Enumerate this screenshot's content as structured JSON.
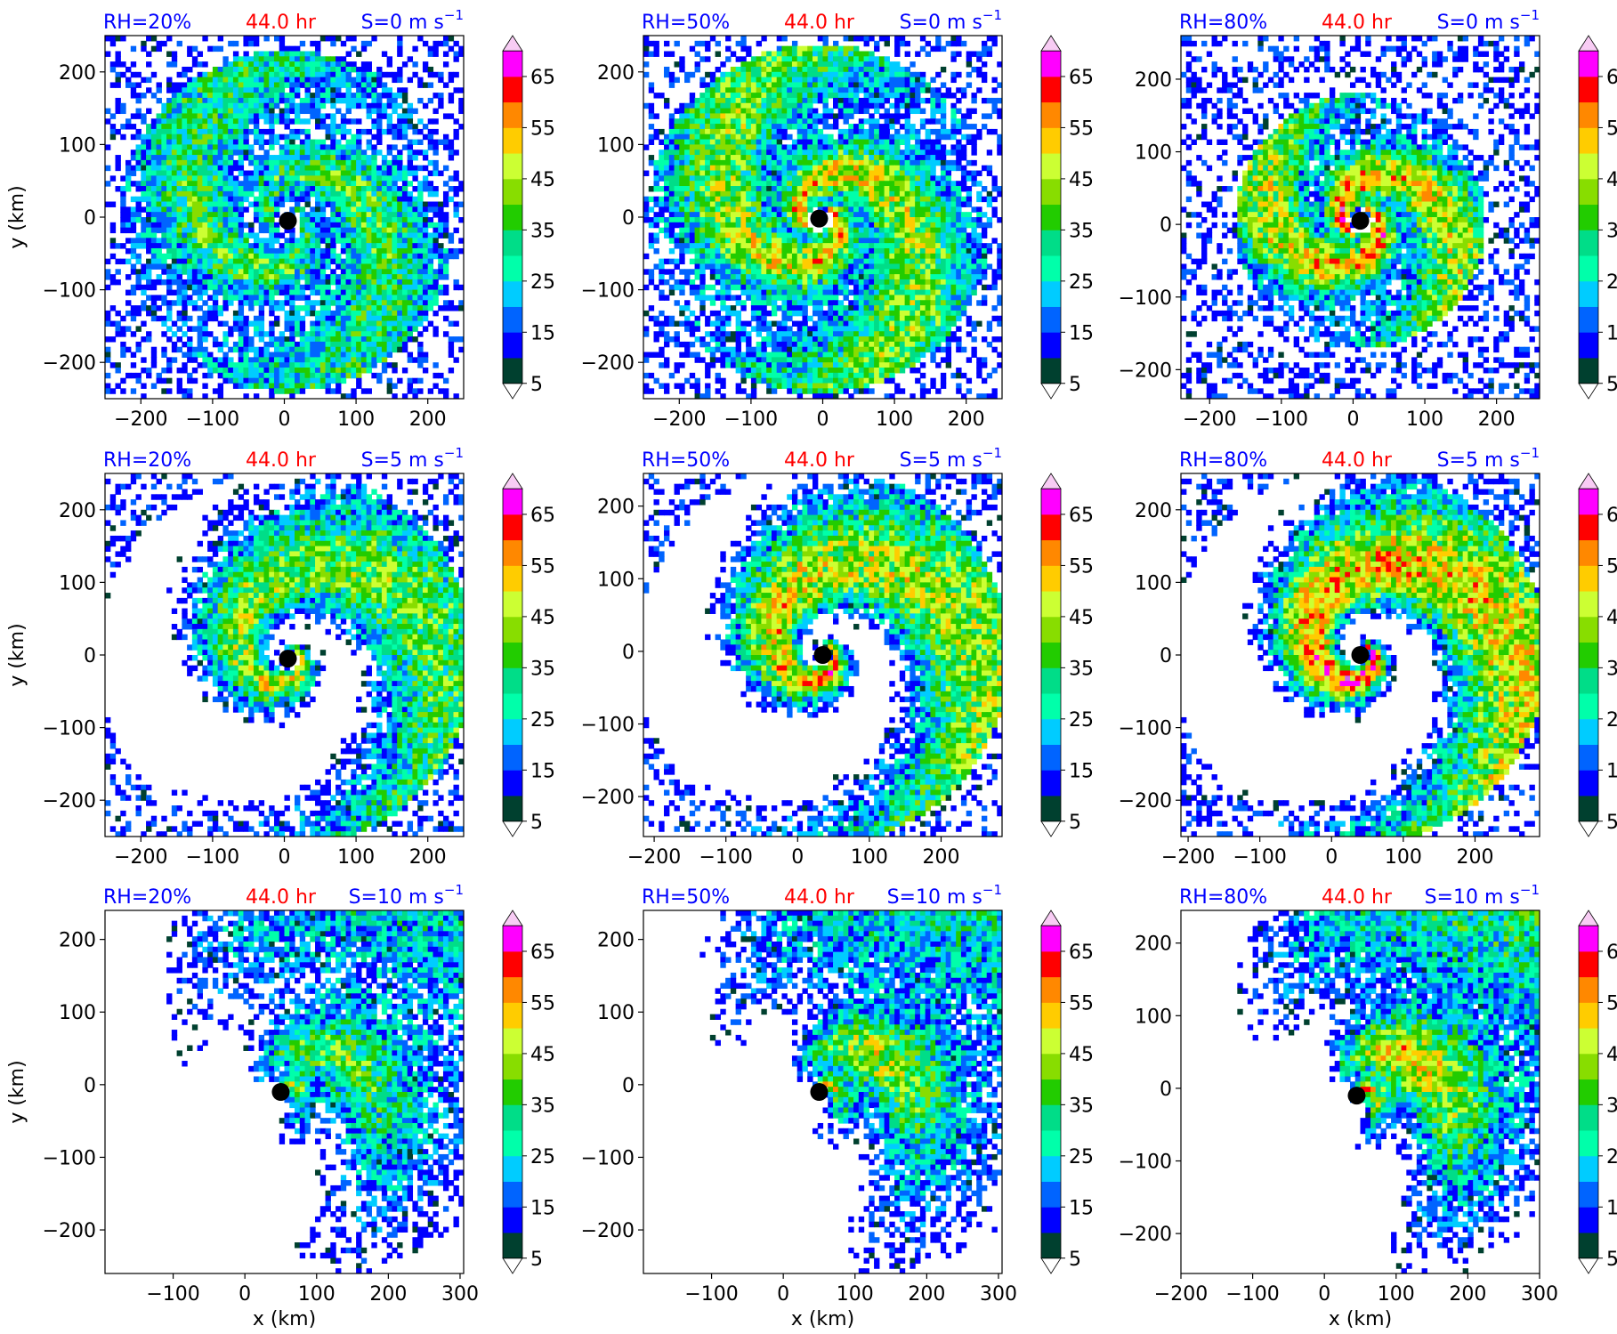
{
  "figure": {
    "time_label": "44.0 hr",
    "xlabel": "x (km)",
    "ylabel": "y (km)",
    "colors": {
      "rh_text": "#0000ff",
      "time_text": "#ff0000",
      "shear_text": "#0000ff",
      "center_marker": "#000000"
    }
  },
  "colorbar": {
    "levels": [
      5,
      10,
      15,
      20,
      25,
      30,
      35,
      40,
      45,
      50,
      55,
      60,
      65,
      70
    ],
    "tick_labels": [
      "5",
      "15",
      "25",
      "35",
      "45",
      "55",
      "65"
    ],
    "colors": [
      "#00402f",
      "#0000ff",
      "#0064ff",
      "#00ccff",
      "#00ffaa",
      "#00dd88",
      "#22cc00",
      "#88dd00",
      "#ccff33",
      "#ffcc00",
      "#ff8800",
      "#ff0000",
      "#ff00ff",
      "#cc66ee",
      "#f8ccf4"
    ],
    "extend": "both"
  },
  "panels": [
    {
      "rh_label": "RH=20%",
      "shear_label": "S=0 m s",
      "shear_sup": "−1",
      "xlim": [
        -250,
        250
      ],
      "ylim": [
        -250,
        250
      ],
      "xticks": [
        -200,
        -100,
        0,
        100,
        200
      ],
      "yticks": [
        -200,
        -100,
        0,
        100,
        200
      ],
      "center": [
        5,
        -5
      ],
      "pattern": "ring",
      "coverage": 0.85,
      "intensity": 0.55
    },
    {
      "rh_label": "RH=50%",
      "shear_label": "S=0 m s",
      "shear_sup": "−1",
      "xlim": [
        -250,
        250
      ],
      "ylim": [
        -250,
        250
      ],
      "xticks": [
        -200,
        -100,
        0,
        100,
        200
      ],
      "yticks": [
        -200,
        -100,
        0,
        100,
        200
      ],
      "center": [
        -5,
        -2
      ],
      "pattern": "symmetric",
      "coverage": 0.95,
      "intensity": 0.7
    },
    {
      "rh_label": "RH=80%",
      "shear_label": "S=0 m s",
      "shear_sup": "−1",
      "xlim": [
        -240,
        260
      ],
      "ylim": [
        -240,
        260
      ],
      "xticks": [
        -200,
        -100,
        0,
        100,
        200
      ],
      "yticks": [
        -200,
        -100,
        0,
        100,
        200
      ],
      "center": [
        10,
        5
      ],
      "pattern": "compact",
      "coverage": 0.75,
      "intensity": 0.85
    },
    {
      "rh_label": "RH=20%",
      "shear_label": "S=5 m s",
      "shear_sup": "−1",
      "xlim": [
        -250,
        250
      ],
      "ylim": [
        -250,
        250
      ],
      "xticks": [
        -200,
        -100,
        0,
        100,
        200
      ],
      "yticks": [
        -200,
        -100,
        0,
        100,
        200
      ],
      "center": [
        5,
        -5
      ],
      "pattern": "spiral",
      "coverage": 0.7,
      "intensity": 0.6
    },
    {
      "rh_label": "RH=50%",
      "shear_label": "S=5 m s",
      "shear_sup": "−1",
      "xlim": [
        -215,
        285
      ],
      "ylim": [
        -255,
        245
      ],
      "xticks": [
        -200,
        -100,
        0,
        100,
        200
      ],
      "yticks": [
        -200,
        -100,
        0,
        100,
        200
      ],
      "center": [
        35,
        -5
      ],
      "pattern": "spiral",
      "coverage": 0.75,
      "intensity": 0.7
    },
    {
      "rh_label": "RH=80%",
      "shear_label": "S=5 m s",
      "shear_sup": "−1",
      "xlim": [
        -210,
        290
      ],
      "ylim": [
        -250,
        250
      ],
      "xticks": [
        -200,
        -100,
        0,
        100,
        200
      ],
      "yticks": [
        -200,
        -100,
        0,
        100,
        200
      ],
      "center": [
        40,
        0
      ],
      "pattern": "spiral",
      "coverage": 0.9,
      "intensity": 0.8
    },
    {
      "rh_label": "RH=20%",
      "shear_label": "S=10 m s",
      "shear_sup": "−1",
      "xlim": [
        -195,
        305
      ],
      "ylim": [
        -260,
        240
      ],
      "xticks": [
        -100,
        0,
        100,
        200,
        300
      ],
      "yticks": [
        -200,
        -100,
        0,
        100,
        200
      ],
      "center": [
        50,
        -10
      ],
      "pattern": "sheared",
      "coverage": 0.5,
      "intensity": 0.6
    },
    {
      "rh_label": "RH=50%",
      "shear_label": "S=10 m s",
      "shear_sup": "−1",
      "xlim": [
        -195,
        305
      ],
      "ylim": [
        -260,
        240
      ],
      "xticks": [
        -100,
        0,
        100,
        200,
        300
      ],
      "yticks": [
        -200,
        -100,
        0,
        100,
        200
      ],
      "center": [
        50,
        -10
      ],
      "pattern": "sheared",
      "coverage": 0.6,
      "intensity": 0.7
    },
    {
      "rh_label": "RH=80%",
      "shear_label": "S=10 m s",
      "shear_sup": "−1",
      "xlim": [
        -200,
        300
      ],
      "ylim": [
        -255,
        245
      ],
      "xticks": [
        -200,
        -100,
        0,
        100,
        200,
        300
      ],
      "yticks": [
        -200,
        -100,
        0,
        100,
        200
      ],
      "center": [
        45,
        -10
      ],
      "pattern": "sheared",
      "coverage": 0.8,
      "intensity": 0.8
    }
  ],
  "chart_data": [
    {
      "type": "heatmap",
      "title": "RH=20%  44.0 hr  S=0 m s−1",
      "xlabel": "",
      "ylabel": "y (km)",
      "xlim": [
        -250,
        250
      ],
      "ylim": [
        -250,
        250
      ],
      "storm_center_km": [
        5,
        -5
      ],
      "value_range": [
        5,
        70
      ]
    },
    {
      "type": "heatmap",
      "title": "RH=50%  44.0 hr  S=0 m s−1",
      "xlabel": "",
      "ylabel": "",
      "xlim": [
        -250,
        250
      ],
      "ylim": [
        -250,
        250
      ],
      "storm_center_km": [
        -5,
        -2
      ],
      "value_range": [
        5,
        70
      ]
    },
    {
      "type": "heatmap",
      "title": "RH=80%  44.0 hr  S=0 m s−1",
      "xlabel": "",
      "ylabel": "",
      "xlim": [
        -240,
        260
      ],
      "ylim": [
        -240,
        260
      ],
      "storm_center_km": [
        10,
        5
      ],
      "value_range": [
        5,
        70
      ]
    },
    {
      "type": "heatmap",
      "title": "RH=20%  44.0 hr  S=5 m s−1",
      "xlabel": "",
      "ylabel": "y (km)",
      "xlim": [
        -250,
        250
      ],
      "ylim": [
        -250,
        250
      ],
      "storm_center_km": [
        5,
        -5
      ],
      "value_range": [
        5,
        70
      ]
    },
    {
      "type": "heatmap",
      "title": "RH=50%  44.0 hr  S=5 m s−1",
      "xlabel": "",
      "ylabel": "",
      "xlim": [
        -215,
        285
      ],
      "ylim": [
        -255,
        245
      ],
      "storm_center_km": [
        35,
        -5
      ],
      "value_range": [
        5,
        70
      ]
    },
    {
      "type": "heatmap",
      "title": "RH=80%  44.0 hr  S=5 m s−1",
      "xlabel": "",
      "ylabel": "",
      "xlim": [
        -210,
        290
      ],
      "ylim": [
        -250,
        250
      ],
      "storm_center_km": [
        40,
        0
      ],
      "value_range": [
        5,
        70
      ]
    },
    {
      "type": "heatmap",
      "title": "RH=20%  44.0 hr  S=10 m s−1",
      "xlabel": "x (km)",
      "ylabel": "y (km)",
      "xlim": [
        -195,
        305
      ],
      "ylim": [
        -260,
        240
      ],
      "storm_center_km": [
        50,
        -10
      ],
      "value_range": [
        5,
        70
      ]
    },
    {
      "type": "heatmap",
      "title": "RH=50%  44.0 hr  S=10 m s−1",
      "xlabel": "x (km)",
      "ylabel": "",
      "xlim": [
        -195,
        305
      ],
      "ylim": [
        -260,
        240
      ],
      "storm_center_km": [
        50,
        -10
      ],
      "value_range": [
        5,
        70
      ]
    },
    {
      "type": "heatmap",
      "title": "RH=80%  44.0 hr  S=10 m s−1",
      "xlabel": "x (km)",
      "ylabel": "",
      "xlim": [
        -200,
        300
      ],
      "ylim": [
        -255,
        245
      ],
      "storm_center_km": [
        45,
        -10
      ],
      "value_range": [
        5,
        70
      ]
    }
  ]
}
